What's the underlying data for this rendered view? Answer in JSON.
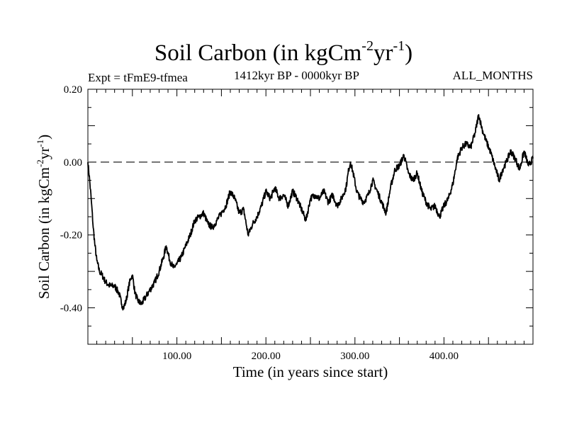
{
  "title": {
    "main": "Soil Carbon (in kgCm",
    "sup1": "-2",
    "mid": "yr",
    "sup2": "-1",
    "end": ")"
  },
  "subtitle": {
    "left": "Expt = tFmE9-tfmea",
    "center": "1412kyr BP - 0000kyr BP",
    "right": "ALL_MONTHS"
  },
  "chart_data": {
    "type": "line",
    "title": "Soil Carbon (in kgCm-2yr-1)",
    "xlabel": "Time (in years since start)",
    "ylabel": "Soil Carbon (in kgCm-2yr-1)",
    "ylabel_parts": {
      "main": "Soil Carbon (in kgCm",
      "sup1": "-2",
      "mid": "yr",
      "sup2": "-1",
      "end": ")"
    },
    "xlim": [
      0,
      500
    ],
    "ylim": [
      -0.5,
      0.2
    ],
    "x_ticks": [
      100,
      200,
      300,
      400
    ],
    "x_tick_labels": [
      "100.00",
      "200.00",
      "300.00",
      "400.00"
    ],
    "y_ticks": [
      0.2,
      0.0,
      -0.2,
      -0.4
    ],
    "y_tick_labels": [
      "0.20",
      "0.00",
      "-0.20",
      "-0.40"
    ],
    "reference_line": {
      "y": 0.0,
      "style": "dashed"
    },
    "series": [
      {
        "name": "Soil Carbon",
        "color": "#000000",
        "x": [
          0,
          2,
          4,
          6,
          8,
          10,
          13,
          16,
          20,
          25,
          30,
          35,
          38,
          40,
          43,
          46,
          48,
          50,
          53,
          56,
          60,
          65,
          70,
          75,
          80,
          85,
          88,
          92,
          96,
          100,
          105,
          110,
          115,
          120,
          125,
          130,
          135,
          140,
          145,
          150,
          155,
          160,
          165,
          170,
          175,
          180,
          185,
          190,
          195,
          200,
          205,
          210,
          215,
          220,
          225,
          230,
          235,
          240,
          245,
          250,
          255,
          260,
          265,
          270,
          275,
          280,
          285,
          290,
          293,
          295,
          298,
          302,
          306,
          310,
          315,
          320,
          325,
          330,
          335,
          340,
          345,
          350,
          355,
          360,
          365,
          370,
          375,
          380,
          385,
          390,
          395,
          400,
          405,
          410,
          415,
          420,
          425,
          430,
          435,
          439,
          443,
          447,
          452,
          457,
          462,
          466,
          470,
          475,
          480,
          485,
          490,
          495,
          500
        ],
        "y": [
          0.0,
          -0.05,
          -0.11,
          -0.18,
          -0.23,
          -0.27,
          -0.3,
          -0.31,
          -0.33,
          -0.34,
          -0.34,
          -0.36,
          -0.39,
          -0.4,
          -0.38,
          -0.34,
          -0.32,
          -0.31,
          -0.36,
          -0.38,
          -0.39,
          -0.37,
          -0.35,
          -0.33,
          -0.3,
          -0.26,
          -0.23,
          -0.27,
          -0.29,
          -0.28,
          -0.26,
          -0.23,
          -0.2,
          -0.16,
          -0.15,
          -0.14,
          -0.17,
          -0.18,
          -0.16,
          -0.14,
          -0.12,
          -0.08,
          -0.1,
          -0.14,
          -0.13,
          -0.2,
          -0.17,
          -0.15,
          -0.12,
          -0.08,
          -0.1,
          -0.07,
          -0.1,
          -0.09,
          -0.12,
          -0.08,
          -0.1,
          -0.13,
          -0.16,
          -0.1,
          -0.09,
          -0.1,
          -0.08,
          -0.11,
          -0.09,
          -0.12,
          -0.1,
          -0.07,
          -0.02,
          0.0,
          -0.03,
          -0.08,
          -0.1,
          -0.11,
          -0.09,
          -0.05,
          -0.08,
          -0.11,
          -0.14,
          -0.07,
          -0.02,
          -0.01,
          0.02,
          -0.03,
          -0.05,
          -0.03,
          -0.08,
          -0.11,
          -0.13,
          -0.12,
          -0.15,
          -0.12,
          -0.1,
          -0.06,
          0.01,
          0.04,
          0.05,
          0.04,
          0.08,
          0.13,
          0.09,
          0.06,
          0.03,
          -0.01,
          -0.05,
          -0.02,
          0.0,
          0.03,
          0.01,
          -0.02,
          0.03,
          -0.01,
          0.01
        ]
      }
    ]
  }
}
